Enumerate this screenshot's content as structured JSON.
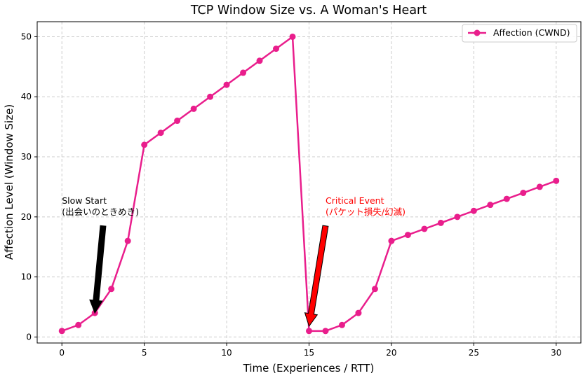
{
  "chart_data": {
    "type": "line",
    "title": "TCP Window Size vs. A Woman's Heart",
    "xlabel": "Time (Experiences / RTT)",
    "ylabel": "Affection Level (Window Size)",
    "xlim": [
      -1.5,
      31.5
    ],
    "ylim": [
      -1,
      52.5
    ],
    "xticks": [
      0,
      5,
      10,
      15,
      20,
      25,
      30
    ],
    "yticks": [
      0,
      10,
      20,
      30,
      40,
      50
    ],
    "grid": true,
    "legend_position": "top-right",
    "series": [
      {
        "name": "Affection (CWND)",
        "color": "#e91e8c",
        "marker": "circle",
        "x": [
          0,
          1,
          2,
          3,
          4,
          5,
          6,
          7,
          8,
          9,
          10,
          11,
          12,
          13,
          14,
          15,
          16,
          17,
          18,
          19,
          20,
          21,
          22,
          23,
          24,
          25,
          26,
          27,
          28,
          29,
          30
        ],
        "y": [
          1,
          2,
          4,
          8,
          16,
          32,
          34,
          36,
          38,
          40,
          42,
          44,
          46,
          48,
          50,
          1,
          1,
          2,
          4,
          8,
          16,
          17,
          18,
          19,
          20,
          21,
          22,
          23,
          24,
          25,
          26
        ]
      }
    ],
    "annotations": [
      {
        "id": "slow-start",
        "lines": [
          "Slow Start",
          "(出会いのときめき)"
        ],
        "text_xy": [
          0,
          20
        ],
        "arrow_tip": [
          2,
          4
        ],
        "arrow_tail": [
          2.5,
          18.5
        ],
        "text_color": "#000000",
        "arrow_color": "#000000"
      },
      {
        "id": "critical-event",
        "lines": [
          "Critical Event",
          "(パケット損失/幻滅)"
        ],
        "text_xy": [
          16,
          20
        ],
        "arrow_tip": [
          15,
          1.8
        ],
        "arrow_tail": [
          16,
          18.5
        ],
        "text_color": "#ff0000",
        "arrow_color": "#ff0000"
      }
    ]
  }
}
